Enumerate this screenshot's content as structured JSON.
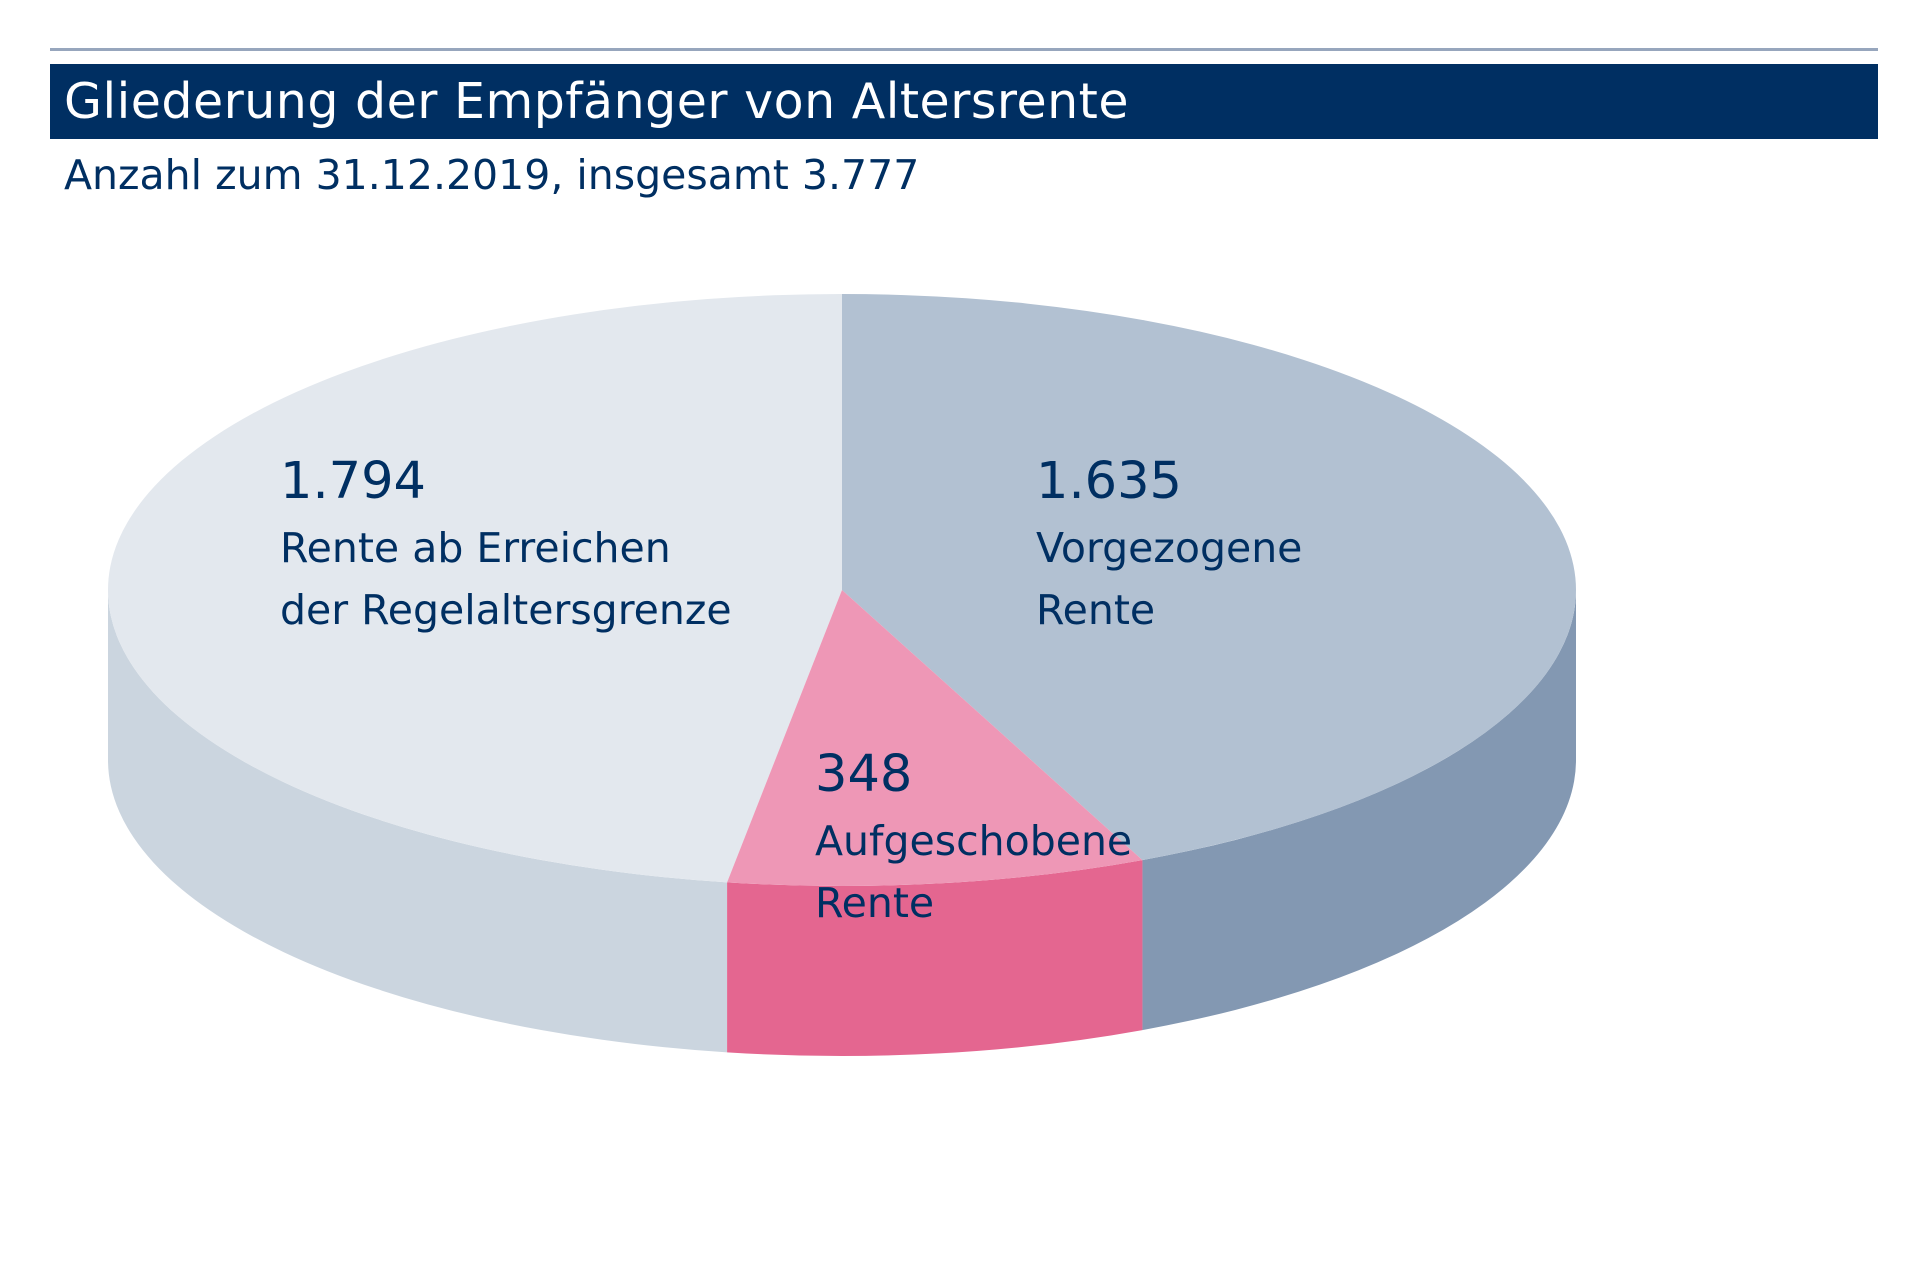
{
  "title": "Gliederung der Empfänger von Altersrente",
  "subtitle": "Anzahl zum 31.12.2019, insgesamt 3.777",
  "chart_data": {
    "type": "pie",
    "style": "3d",
    "total": 3777,
    "slices": [
      {
        "label_lines": [
          "Rente ab Erreichen",
          "der Regelaltersgrenze"
        ],
        "value": 1794,
        "value_label": "1.794",
        "top_color": "#e3e8ee",
        "side_color": "#cbd5df"
      },
      {
        "label_lines": [
          "Vorgezogene",
          "Rente"
        ],
        "value": 1635,
        "value_label": "1.635",
        "top_color": "#b2c1d2",
        "side_color": "#8398b2"
      },
      {
        "label_lines": [
          "Aufgeschobene",
          "Rente"
        ],
        "value": 348,
        "value_label": "348",
        "top_color": "#ee97b6",
        "side_color": "#e46690"
      }
    ]
  }
}
